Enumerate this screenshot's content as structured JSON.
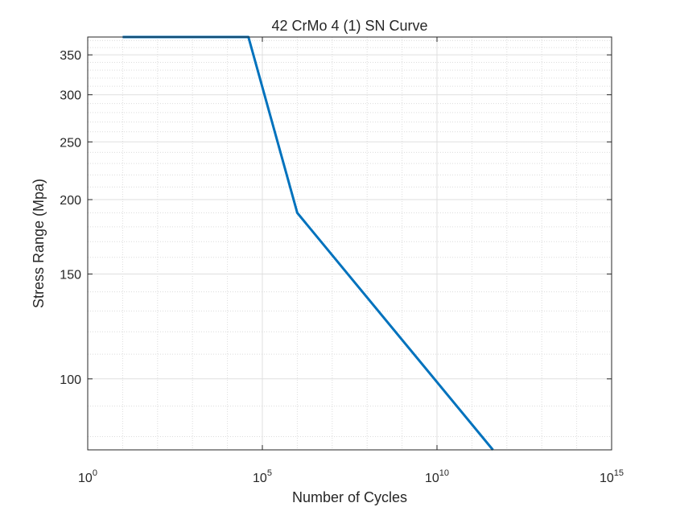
{
  "chart_data": {
    "type": "line",
    "title": "42 CrMo 4 (1) SN Curve",
    "xlabel": "Number of Cycles",
    "ylabel": "Stress Range (Mpa)",
    "xscale": "log",
    "yscale": "log",
    "xlim": [
      1,
      1000000000000000
    ],
    "ylim": [
      76,
      375
    ],
    "x_ticks": [
      {
        "base": "10",
        "exp": "0",
        "value": 1
      },
      {
        "base": "10",
        "exp": "5",
        "value": 100000
      },
      {
        "base": "10",
        "exp": "10",
        "value": 10000000000
      },
      {
        "base": "10",
        "exp": "15",
        "value": 1000000000000000
      }
    ],
    "y_ticks": [
      {
        "label": "100",
        "value": 100
      },
      {
        "label": "150",
        "value": 150
      },
      {
        "label": "200",
        "value": 200
      },
      {
        "label": "250",
        "value": 250
      },
      {
        "label": "300",
        "value": 300
      },
      {
        "label": "350",
        "value": 350
      }
    ],
    "grid": true,
    "minor_grid": true,
    "series": [
      {
        "color": "#0072bd",
        "x": [
          10,
          40000,
          1000000,
          400000000000
        ],
        "y": [
          375,
          375,
          190,
          76
        ]
      }
    ]
  }
}
